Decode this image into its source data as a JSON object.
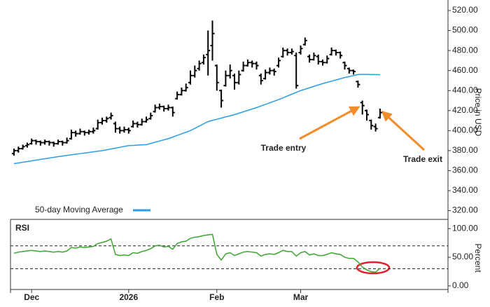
{
  "chart_data": [
    {
      "type": "ohlc",
      "open": [
        377,
        380,
        382,
        385,
        387,
        390,
        389,
        388,
        389,
        388,
        387,
        389,
        388,
        392,
        398,
        397,
        399,
        398,
        399,
        402,
        408,
        410,
        413,
        407,
        402,
        400,
        401,
        404,
        407,
        406,
        409,
        412,
        419,
        423,
        424,
        422,
        423,
        432,
        436,
        440,
        448,
        455,
        462,
        468,
        476,
        485,
        465,
        440,
        445,
        455,
        455,
        448,
        460,
        465,
        468,
        467,
        455,
        452,
        458,
        460,
        465,
        474,
        480,
        478,
        475,
        478,
        486,
        474,
        471,
        474,
        469,
        468,
        476,
        480,
        478,
        468,
        462,
        460,
        449,
        428,
        420,
        410,
        404,
        413
      ],
      "high": [
        382,
        384,
        386,
        388,
        392,
        391,
        390,
        391,
        390,
        389,
        391,
        390,
        393,
        401,
        400,
        402,
        400,
        401,
        403,
        411,
        413,
        414,
        418,
        409,
        404,
        404,
        403,
        410,
        409,
        412,
        414,
        418,
        426,
        427,
        425,
        426,
        424,
        439,
        443,
        447,
        460,
        465,
        470,
        476,
        500,
        510,
        466,
        441,
        460,
        466,
        457,
        460,
        469,
        471,
        470,
        469,
        457,
        461,
        463,
        462,
        473,
        483,
        482,
        482,
        478,
        485,
        493,
        476,
        478,
        476,
        471,
        475,
        483,
        481,
        479,
        469,
        463,
        461,
        450,
        430,
        421,
        411,
        407,
        422
      ],
      "low": [
        375,
        378,
        381,
        383,
        386,
        386,
        385,
        386,
        385,
        384,
        386,
        385,
        387,
        391,
        394,
        396,
        395,
        396,
        397,
        401,
        406,
        408,
        411,
        398,
        397,
        398,
        397,
        403,
        403,
        405,
        408,
        411,
        418,
        421,
        419,
        420,
        414,
        431,
        435,
        439,
        446,
        453,
        460,
        466,
        455,
        470,
        440,
        423,
        444,
        452,
        441,
        446,
        459,
        464,
        463,
        461,
        446,
        451,
        456,
        455,
        463,
        473,
        475,
        476,
        442,
        476,
        485,
        468,
        470,
        466,
        465,
        467,
        475,
        475,
        472,
        461,
        457,
        456,
        443,
        416,
        410,
        401,
        399,
        412
      ],
      "close": [
        380,
        382,
        384,
        386,
        390,
        389,
        388,
        389,
        388,
        387,
        389,
        388,
        390,
        398,
        397,
        399,
        398,
        399,
        400,
        408,
        410,
        412,
        415,
        402,
        400,
        401,
        400,
        407,
        406,
        409,
        411,
        415,
        423,
        424,
        422,
        423,
        418,
        436,
        440,
        443,
        455,
        460,
        467,
        473,
        480,
        497,
        448,
        430,
        455,
        460,
        448,
        456,
        465,
        468,
        467,
        465,
        450,
        458,
        460,
        459,
        470,
        480,
        478,
        479,
        445,
        482,
        490,
        471,
        475,
        469,
        468,
        472,
        480,
        478,
        475,
        465,
        460,
        459,
        446,
        425,
        416,
        405,
        402,
        418
      ],
      "color": "#000000",
      "series": [
        {
          "name": "50-day Moving Average",
          "color": "#2a9de8",
          "values": [
            367,
            367.7,
            368.4,
            369.1,
            369.8,
            370.5,
            371.2,
            371.9,
            372.6,
            373.3,
            374,
            374.6,
            375.2,
            375.8,
            376.4,
            377,
            377.6,
            378.2,
            378.8,
            379.4,
            380,
            380.8,
            381.7,
            382.5,
            383.3,
            384.2,
            385,
            385.2,
            385.5,
            385.8,
            386,
            387.2,
            388.4,
            389.6,
            390.8,
            392,
            393.6,
            395.2,
            396.8,
            398.4,
            400,
            402.2,
            404.5,
            406.8,
            409,
            410.2,
            411.3,
            412.5,
            413.7,
            414.8,
            416,
            417.4,
            418.8,
            420.2,
            421.6,
            423,
            424.6,
            426.2,
            427.8,
            429.4,
            431,
            432.8,
            434.6,
            436.4,
            438.2,
            440,
            441.4,
            442.8,
            444.2,
            445.6,
            447,
            448.2,
            449.4,
            450.6,
            451.8,
            453,
            454,
            455,
            456,
            456.2,
            456.2,
            456,
            456,
            455.8
          ]
        }
      ],
      "ylim": [
        312,
        527
      ],
      "yticks": [
        {
          "value": 320,
          "label": "320.00"
        },
        {
          "value": 340,
          "label": "340.00"
        },
        {
          "value": 360,
          "label": "360.00"
        },
        {
          "value": 380,
          "label": "380.00"
        },
        {
          "value": 400,
          "label": "400.00"
        },
        {
          "value": 420,
          "label": "420.00"
        },
        {
          "value": 440,
          "label": "440.00"
        },
        {
          "value": 460,
          "label": "460.00"
        },
        {
          "value": 480,
          "label": "480.00"
        },
        {
          "value": 500,
          "label": "500.00"
        },
        {
          "value": 520,
          "label": "520.00"
        }
      ],
      "y_label": "Price in USD",
      "annotations": [
        "Trade entry",
        "Trade exit"
      ],
      "annotation_color": "#f28b2a"
    },
    {
      "type": "line",
      "title": "RSI",
      "categories": [
        null,
        null,
        null,
        null,
        "Dec",
        null,
        null,
        null,
        null,
        null,
        null,
        null,
        null,
        null,
        null,
        null,
        null,
        null,
        null,
        null,
        null,
        null,
        null,
        null,
        null,
        null,
        "2026",
        null,
        null,
        null,
        null,
        null,
        null,
        null,
        null,
        null,
        null,
        null,
        null,
        null,
        null,
        null,
        null,
        null,
        null,
        null,
        "Feb",
        null,
        null,
        null,
        null,
        null,
        null,
        null,
        null,
        null,
        null,
        null,
        null,
        null,
        null,
        null,
        null,
        null,
        null,
        "Mar",
        null,
        null,
        null,
        null,
        null,
        null,
        null,
        null,
        null,
        null,
        null,
        null,
        null,
        null,
        null,
        null,
        null,
        null
      ],
      "values": [
        57,
        59,
        60,
        61,
        62,
        61,
        60,
        61,
        60,
        59,
        60,
        59,
        61,
        67,
        66,
        68,
        67,
        68,
        69,
        74,
        76,
        78,
        82,
        55,
        53,
        54,
        53,
        58,
        57,
        60,
        62,
        65,
        70,
        71,
        68,
        69,
        64,
        74,
        77,
        78,
        83,
        85,
        86,
        88,
        89,
        90,
        55,
        45,
        56,
        58,
        53,
        56,
        59,
        60,
        59,
        58,
        52,
        55,
        56,
        55,
        58,
        62,
        60,
        60,
        52,
        58,
        60,
        54,
        56,
        53,
        53,
        55,
        58,
        56,
        55,
        50,
        48,
        48,
        42,
        33,
        28,
        25,
        24,
        31
      ],
      "color": "#3aa52e",
      "ylim": [
        -5,
        110
      ],
      "yticks": [
        {
          "value": 0,
          "label": "0.00"
        },
        {
          "value": 50,
          "label": "50.00"
        },
        {
          "value": 100,
          "label": "100.00"
        }
      ],
      "levels": [
        30,
        70
      ],
      "y_label": "Percent"
    }
  ]
}
